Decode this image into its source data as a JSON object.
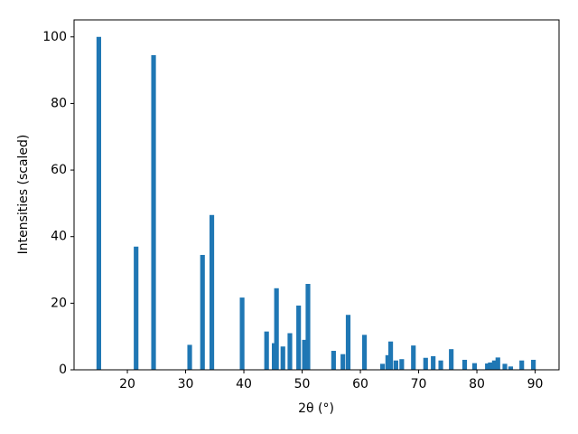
{
  "chart_data": {
    "type": "bar",
    "xlabel": "2θ (°)",
    "ylabel": "Intensities (scaled)",
    "x": [
      15.1,
      21.5,
      24.5,
      30.7,
      32.9,
      34.5,
      39.7,
      43.9,
      45.2,
      45.6,
      46.7,
      47.9,
      49.4,
      50.4,
      51.0,
      55.4,
      57.0,
      57.9,
      60.7,
      63.8,
      64.7,
      65.2,
      66.1,
      67.1,
      69.1,
      71.2,
      72.5,
      73.8,
      75.6,
      77.9,
      79.6,
      81.8,
      82.3,
      83.0,
      83.6,
      84.8,
      85.8,
      87.7,
      89.7
    ],
    "values": [
      100,
      37,
      94.5,
      7.5,
      34.5,
      46.5,
      21.7,
      11.5,
      8,
      24.5,
      7,
      11,
      19.3,
      9,
      25.8,
      5.7,
      4.7,
      16.5,
      10.5,
      1.8,
      4.4,
      8.5,
      2.8,
      3.2,
      7.3,
      3.6,
      4.1,
      2.8,
      6.2,
      3,
      2,
      1.9,
      2.2,
      2.8,
      3.7,
      1.8,
      1,
      2.8,
      3
    ],
    "color": "#1f77b4",
    "xlim": [
      10.85,
      94.1
    ],
    "ylim": [
      0,
      105.1
    ],
    "xticks": [
      20,
      30,
      40,
      50,
      60,
      70,
      80,
      90
    ],
    "yticks": [
      0,
      20,
      40,
      60,
      80,
      100
    ]
  }
}
